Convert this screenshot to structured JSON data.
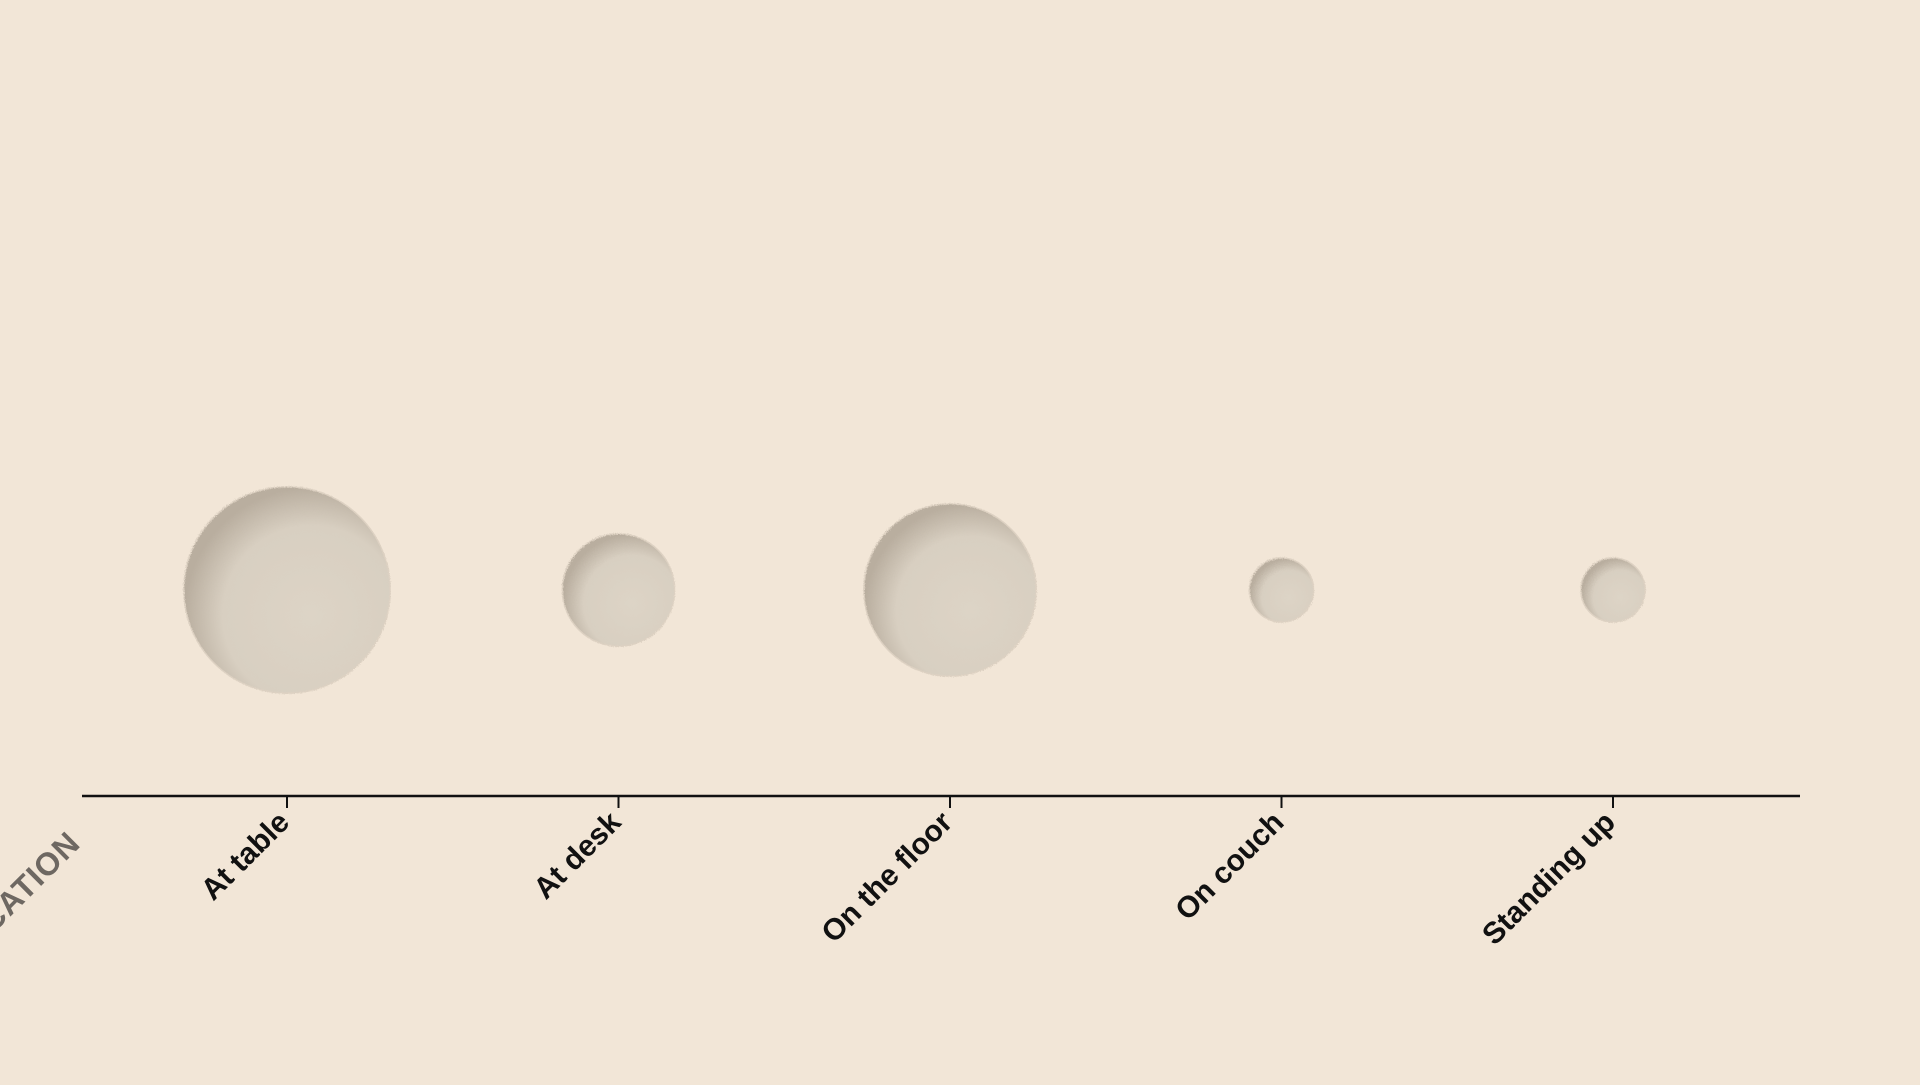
{
  "colors": {
    "background": "#f2e6d7",
    "bubble_fill": "#ddd4c6",
    "bubble_shadow": "#b8ad9e",
    "axis": "#111111",
    "axis_title": "#6e6862"
  },
  "chart_data": {
    "type": "scatter",
    "xlabel": "LOCATION",
    "ylabel": "",
    "title": "",
    "categories": [
      "At table",
      "At desk",
      "On the floor",
      "On couch",
      "Standing up"
    ],
    "bubble_size": [
      10,
      3,
      7,
      1,
      1
    ],
    "y": [
      0,
      0,
      0,
      0,
      0
    ],
    "grid": false,
    "legend": "none"
  }
}
